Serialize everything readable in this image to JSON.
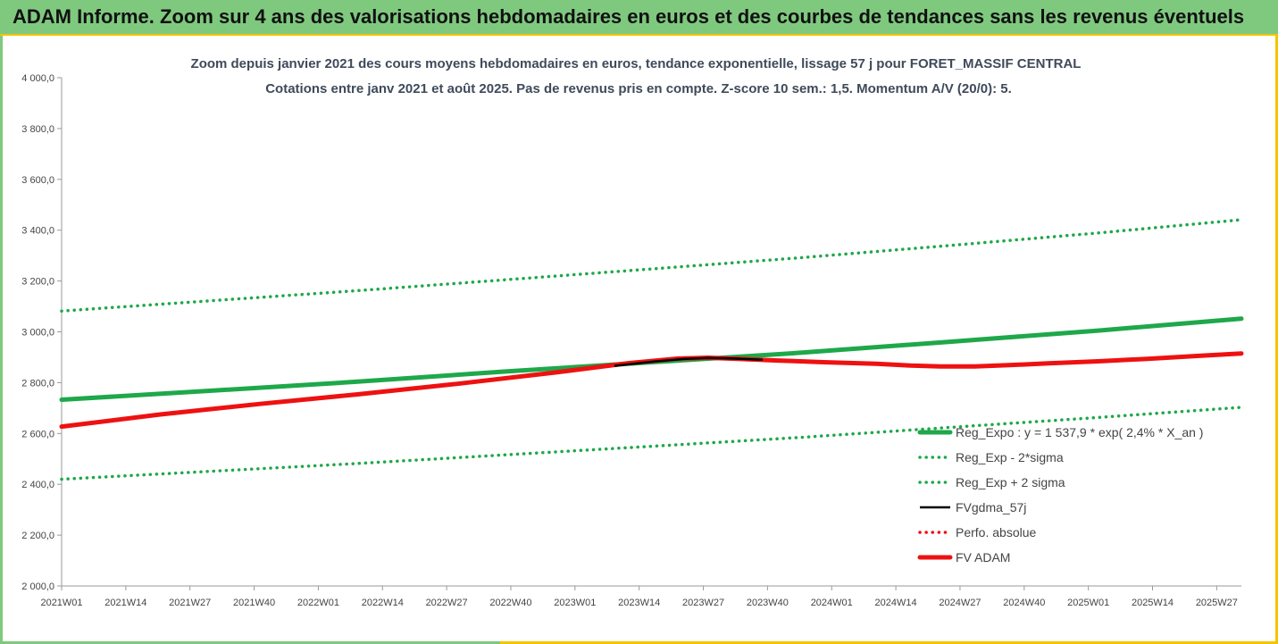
{
  "banner": {
    "title": "ADAM Informe. Zoom sur 4 ans des valorisations hebdomadaires en euros et des courbes de tendances sans les revenus éventuels"
  },
  "colors": {
    "green": "#1ea84a",
    "red": "#ee1111",
    "black": "#000000",
    "banner_bg": "#7fc97f",
    "banner_border": "#f5c400"
  },
  "chart_data": {
    "type": "line",
    "title": "Zoom depuis janvier 2021 des cours moyens hebdomadaires en euros, tendance exponentielle, lissage 57 j pour FORET_MASSIF CENTRAL",
    "subtitle": "Cotations entre janv 2021 et août 2025.  Pas de revenus pris en compte. Z-score 10 sem.: 1,5. Momentum A/V (20/0): 5.",
    "xlabel": "",
    "ylabel": "",
    "ylim": [
      2000,
      4000
    ],
    "yticks": [
      "2 000,0",
      "2 200,0",
      "2 400,0",
      "2 600,0",
      "2 800,0",
      "3 000,0",
      "3 200,0",
      "3 400,0",
      "3 600,0",
      "3 800,0",
      "4 000,0"
    ],
    "xlim": [
      0,
      239
    ],
    "xticks": [
      {
        "x": 0,
        "label": "2021W01"
      },
      {
        "x": 13,
        "label": "2021W14"
      },
      {
        "x": 26,
        "label": "2021W27"
      },
      {
        "x": 39,
        "label": "2021W40"
      },
      {
        "x": 52,
        "label": "2022W01"
      },
      {
        "x": 65,
        "label": "2022W14"
      },
      {
        "x": 78,
        "label": "2022W27"
      },
      {
        "x": 91,
        "label": "2022W40"
      },
      {
        "x": 104,
        "label": "2023W01"
      },
      {
        "x": 117,
        "label": "2023W14"
      },
      {
        "x": 130,
        "label": "2023W27"
      },
      {
        "x": 143,
        "label": "2023W40"
      },
      {
        "x": 156,
        "label": "2024W01"
      },
      {
        "x": 169,
        "label": "2024W14"
      },
      {
        "x": 182,
        "label": "2024W27"
      },
      {
        "x": 195,
        "label": "2024W40"
      },
      {
        "x": 208,
        "label": "2025W01"
      },
      {
        "x": 221,
        "label": "2025W14"
      },
      {
        "x": 234,
        "label": "2025W27"
      }
    ],
    "legend": "right-middle",
    "grid": false,
    "series": [
      {
        "name": "Reg_Expo : y = 1 537,9 * exp( 2,4% *  X_an )",
        "style": "solid-thick",
        "color": "#1ea84a",
        "x": [
          0,
          30,
          60,
          90,
          120,
          150,
          180,
          210,
          239
        ],
        "y": [
          2733,
          2768,
          2804,
          2844,
          2881,
          2918,
          2961,
          3005,
          3052
        ]
      },
      {
        "name": "Reg_Exp - 2*sigma",
        "style": "dotted",
        "color": "#1ea84a",
        "x": [
          0,
          30,
          60,
          90,
          120,
          150,
          180,
          210,
          239
        ],
        "y": [
          2420,
          2451,
          2482,
          2516,
          2550,
          2585,
          2624,
          2663,
          2703
        ]
      },
      {
        "name": "Reg_Exp + 2 sigma",
        "style": "dotted",
        "color": "#1ea84a",
        "x": [
          0,
          30,
          60,
          90,
          120,
          150,
          180,
          210,
          239
        ],
        "y": [
          3082,
          3122,
          3162,
          3205,
          3248,
          3292,
          3340,
          3389,
          3441
        ]
      },
      {
        "name": "FVgdma_57j",
        "style": "solid-thin",
        "color": "#000000",
        "x": [
          112,
          120,
          126,
          131,
          136,
          142
        ],
        "y": [
          2866,
          2883,
          2893,
          2897,
          2895,
          2890
        ]
      },
      {
        "name": "Perfo. absolue",
        "style": "dotted-red",
        "color": "#ee1111",
        "x": [],
        "y": []
      },
      {
        "name": "FV ADAM",
        "style": "solid-thick",
        "color": "#ee1111",
        "x": [
          0,
          20,
          40,
          60,
          80,
          100,
          115,
          125,
          131,
          137,
          145,
          155,
          165,
          172,
          178,
          185,
          192,
          200,
          210,
          220,
          230,
          239
        ],
        "y": [
          2627,
          2675,
          2716,
          2754,
          2795,
          2840,
          2877,
          2895,
          2898,
          2894,
          2887,
          2880,
          2874,
          2867,
          2864,
          2864,
          2869,
          2876,
          2884,
          2894,
          2905,
          2915
        ]
      }
    ]
  }
}
